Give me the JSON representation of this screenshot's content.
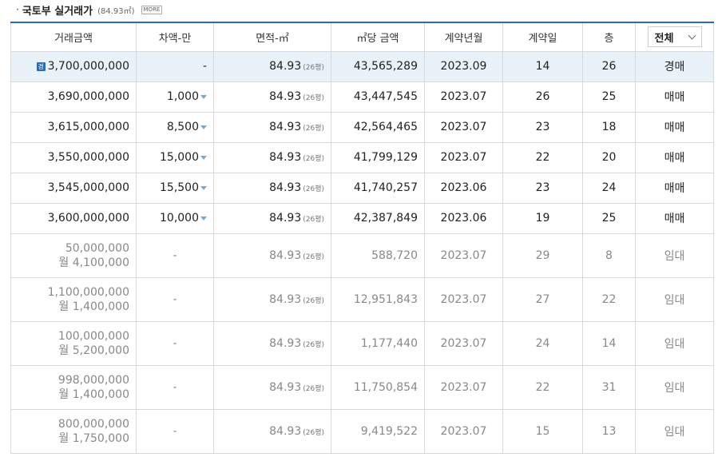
{
  "header": {
    "dot": "·",
    "title": "국토부 실거래가",
    "subtitle": "(84.93㎡)",
    "more_label": "MORE"
  },
  "columns": [
    "거래금액",
    "차액-만",
    "면적-㎡",
    "㎡당 금액",
    "계약년월",
    "계약일",
    "층"
  ],
  "filter": {
    "selected": "전체"
  },
  "pyeong_label": "(26평)",
  "auction_icon_label": "경",
  "rows": [
    {
      "amount": "3,700,000,000",
      "diff": "-",
      "area": "84.93",
      "ppm": "43,565,289",
      "ym": "2023.09",
      "day": "14",
      "floor": "26",
      "type": "경매"
    },
    {
      "amount": "3,690,000,000",
      "diff": "1,000",
      "area": "84.93",
      "ppm": "43,447,545",
      "ym": "2023.07",
      "day": "26",
      "floor": "25",
      "type": "매매"
    },
    {
      "amount": "3,615,000,000",
      "diff": "8,500",
      "area": "84.93",
      "ppm": "42,564,465",
      "ym": "2023.07",
      "day": "23",
      "floor": "18",
      "type": "매매"
    },
    {
      "amount": "3,550,000,000",
      "diff": "15,000",
      "area": "84.93",
      "ppm": "41,799,129",
      "ym": "2023.07",
      "day": "22",
      "floor": "20",
      "type": "매매"
    },
    {
      "amount": "3,545,000,000",
      "diff": "15,500",
      "area": "84.93",
      "ppm": "41,740,257",
      "ym": "2023.06",
      "day": "23",
      "floor": "24",
      "type": "매매"
    },
    {
      "amount": "3,600,000,000",
      "diff": "10,000",
      "area": "84.93",
      "ppm": "42,387,849",
      "ym": "2023.06",
      "day": "19",
      "floor": "25",
      "type": "매매"
    },
    {
      "amount": "50,000,000",
      "monthly": "월 4,100,000",
      "diff": "-",
      "area": "84.93",
      "ppm": "588,720",
      "ym": "2023.07",
      "day": "29",
      "floor": "8",
      "type": "임대"
    },
    {
      "amount": "1,100,000,000",
      "monthly": "월 1,400,000",
      "diff": "-",
      "area": "84.93",
      "ppm": "12,951,843",
      "ym": "2023.07",
      "day": "27",
      "floor": "22",
      "type": "임대"
    },
    {
      "amount": "100,000,000",
      "monthly": "월 5,200,000",
      "diff": "-",
      "area": "84.93",
      "ppm": "1,177,440",
      "ym": "2023.07",
      "day": "24",
      "floor": "14",
      "type": "임대"
    },
    {
      "amount": "998,000,000",
      "monthly": "월 1,400,000",
      "diff": "-",
      "area": "84.93",
      "ppm": "11,750,854",
      "ym": "2023.07",
      "day": "22",
      "floor": "31",
      "type": "임대"
    },
    {
      "amount": "800,000,000",
      "monthly": "월 1,750,000",
      "diff": "-",
      "area": "84.93",
      "ppm": "9,419,522",
      "ym": "2023.07",
      "day": "15",
      "floor": "13",
      "type": "임대"
    }
  ],
  "colors": {
    "header_accent": "#2c6ab4",
    "highlight_row": "#e9f1f9",
    "down_arrow": "#6aaed8"
  }
}
